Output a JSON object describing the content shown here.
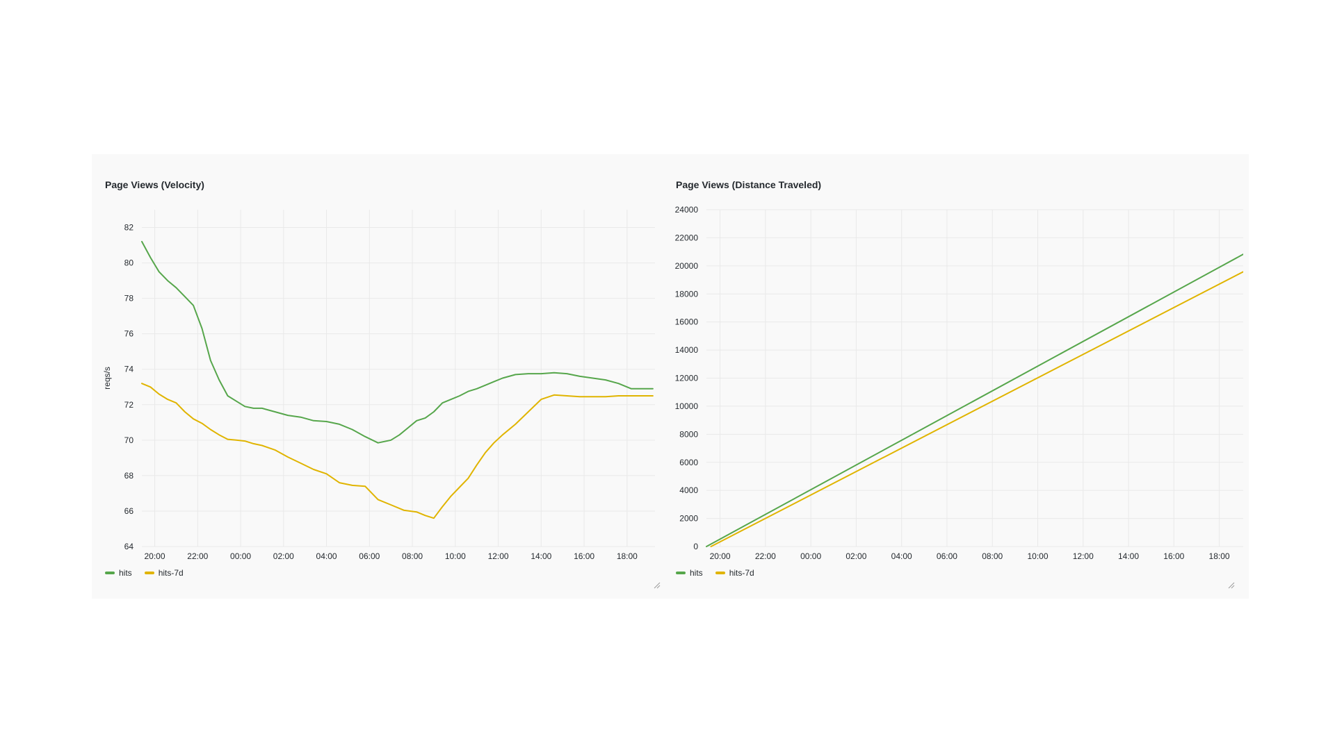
{
  "colors": {
    "hits": "#56a64b",
    "hits_7d": "#e0b400",
    "grid": "#e9e9e9",
    "axis_text": "#24292e"
  },
  "panels": [
    {
      "title": "Page Views (Velocity)",
      "legend": [
        "hits",
        "hits-7d"
      ]
    },
    {
      "title": "Page Views (Distance Traveled)",
      "legend": [
        "hits",
        "hits-7d"
      ]
    }
  ],
  "chart_data": [
    {
      "type": "line",
      "title": "Page Views (Velocity)",
      "xlabel": "",
      "ylabel": "reqs/s",
      "x_ticks": [
        "20:00",
        "22:00",
        "00:00",
        "02:00",
        "04:00",
        "06:00",
        "08:00",
        "10:00",
        "12:00",
        "14:00",
        "16:00",
        "18:00"
      ],
      "y_ticks": [
        64,
        66,
        68,
        70,
        72,
        74,
        76,
        78,
        80,
        82
      ],
      "ylim": [
        64,
        83
      ],
      "xlim_hours": [
        19.4,
        43.3
      ],
      "grid": true,
      "legend_position": "bottom-left",
      "series": [
        {
          "name": "hits",
          "x": [
            19.4,
            19.8,
            20.2,
            20.6,
            21.0,
            21.4,
            21.8,
            22.2,
            22.6,
            23.0,
            23.4,
            23.8,
            24.2,
            24.6,
            25.0,
            25.6,
            26.2,
            26.8,
            27.4,
            28.0,
            28.6,
            29.2,
            29.8,
            30.4,
            31.0,
            31.4,
            31.8,
            32.2,
            32.6,
            33.0,
            33.4,
            33.8,
            34.2,
            34.6,
            35.0,
            35.4,
            35.8,
            36.2,
            36.8,
            37.4,
            38.0,
            38.6,
            39.2,
            39.8,
            40.4,
            41.0,
            41.6,
            42.2,
            42.8,
            43.2
          ],
          "values": [
            81.2,
            80.3,
            79.5,
            79.0,
            78.6,
            78.1,
            77.6,
            76.3,
            74.5,
            73.4,
            72.5,
            72.2,
            71.9,
            71.8,
            71.8,
            71.6,
            71.4,
            71.3,
            71.1,
            71.05,
            70.9,
            70.6,
            70.2,
            69.85,
            70.0,
            70.3,
            70.7,
            71.1,
            71.25,
            71.6,
            72.1,
            72.3,
            72.5,
            72.75,
            72.9,
            73.1,
            73.3,
            73.5,
            73.7,
            73.75,
            73.75,
            73.8,
            73.75,
            73.6,
            73.5,
            73.4,
            73.2,
            72.9,
            72.9,
            72.9
          ]
        },
        {
          "name": "hits-7d",
          "x": [
            19.4,
            19.8,
            20.2,
            20.6,
            21.0,
            21.4,
            21.8,
            22.2,
            22.6,
            23.0,
            23.4,
            23.8,
            24.2,
            24.6,
            25.0,
            25.6,
            26.2,
            26.8,
            27.4,
            28.0,
            28.6,
            29.2,
            29.8,
            30.4,
            31.0,
            31.6,
            32.2,
            32.6,
            33.0,
            33.4,
            33.8,
            34.2,
            34.6,
            35.0,
            35.4,
            35.8,
            36.2,
            36.8,
            37.4,
            38.0,
            38.6,
            39.2,
            39.8,
            40.4,
            41.0,
            41.6,
            42.2,
            42.8,
            43.2
          ],
          "values": [
            73.2,
            73.0,
            72.6,
            72.3,
            72.1,
            71.6,
            71.2,
            70.95,
            70.6,
            70.3,
            70.05,
            70.0,
            69.95,
            69.8,
            69.7,
            69.45,
            69.05,
            68.7,
            68.35,
            68.1,
            67.6,
            67.45,
            67.4,
            66.65,
            66.35,
            66.05,
            65.95,
            65.75,
            65.6,
            66.25,
            66.85,
            67.35,
            67.85,
            68.6,
            69.3,
            69.85,
            70.3,
            70.9,
            71.6,
            72.3,
            72.55,
            72.5,
            72.45,
            72.45,
            72.45,
            72.5,
            72.5,
            72.5,
            72.5
          ]
        }
      ]
    },
    {
      "type": "line",
      "title": "Page Views (Distance Traveled)",
      "xlabel": "",
      "ylabel": "",
      "x_ticks": [
        "20:00",
        "22:00",
        "00:00",
        "02:00",
        "04:00",
        "06:00",
        "08:00",
        "10:00",
        "12:00",
        "14:00",
        "16:00",
        "18:00"
      ],
      "y_ticks": [
        0,
        2000,
        4000,
        6000,
        8000,
        10000,
        12000,
        14000,
        16000,
        18000,
        20000,
        22000,
        24000
      ],
      "ylim": [
        0,
        24000
      ],
      "xlim_hours": [
        19.4,
        43.3
      ],
      "grid": true,
      "legend_position": "bottom-left",
      "series": [
        {
          "name": "hits",
          "x": [
            19.4,
            43.2
          ],
          "values": [
            0,
            20950
          ]
        },
        {
          "name": "hits-7d",
          "x": [
            19.6,
            43.2
          ],
          "values": [
            0,
            19700
          ]
        }
      ]
    }
  ]
}
